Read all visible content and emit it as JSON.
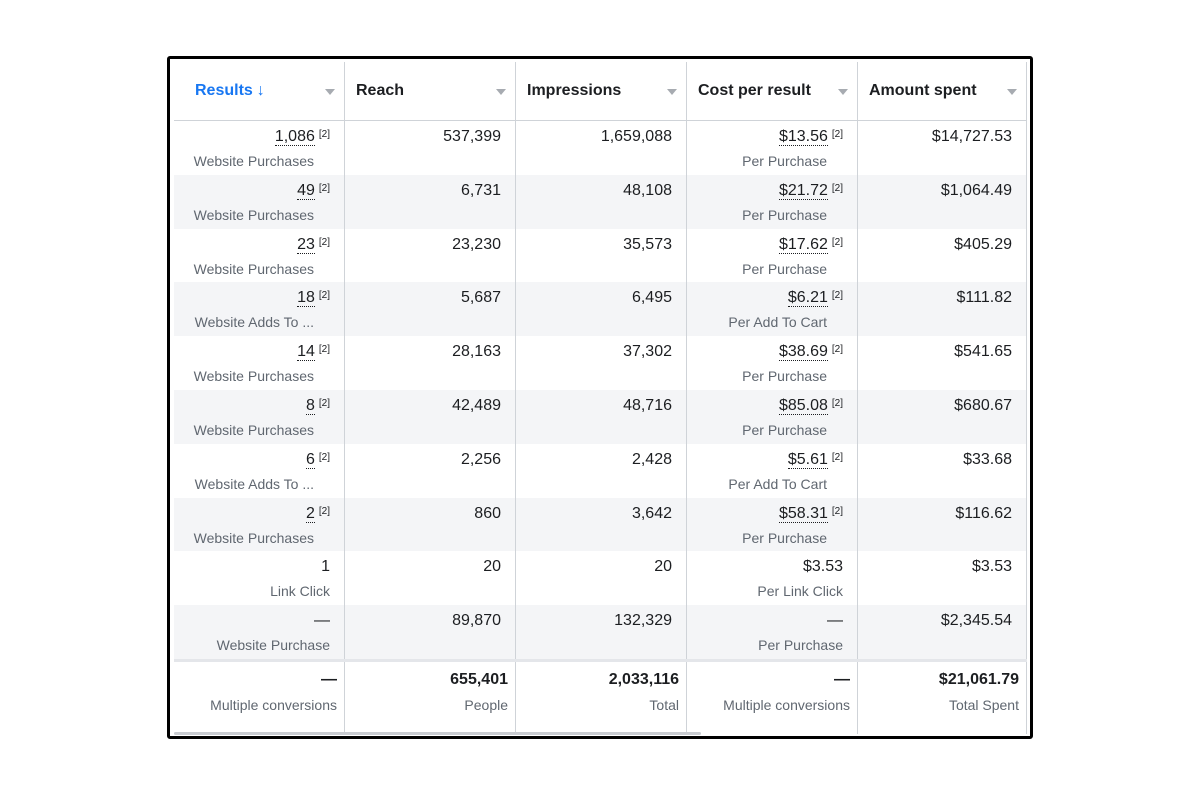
{
  "columns": [
    {
      "label": "Results",
      "sorted": true
    },
    {
      "label": "Reach"
    },
    {
      "label": "Impressions"
    },
    {
      "label": "Cost per result"
    },
    {
      "label": "Amount spent"
    }
  ],
  "sort_arrow": "↓",
  "rows": [
    {
      "results": "1,086",
      "results_sub": "Website Purchases",
      "results_note": "[2]",
      "reach": "537,399",
      "impressions": "1,659,088",
      "cost": "$13.56",
      "cost_note": "[2]",
      "cost_sub": "Per Purchase",
      "spent": "$14,727.53"
    },
    {
      "results": "49",
      "results_sub": "Website Purchases",
      "results_note": "[2]",
      "reach": "6,731",
      "impressions": "48,108",
      "cost": "$21.72",
      "cost_note": "[2]",
      "cost_sub": "Per Purchase",
      "spent": "$1,064.49"
    },
    {
      "results": "23",
      "results_sub": "Website Purchases",
      "results_note": "[2]",
      "reach": "23,230",
      "impressions": "35,573",
      "cost": "$17.62",
      "cost_note": "[2]",
      "cost_sub": "Per Purchase",
      "spent": "$405.29"
    },
    {
      "results": "18",
      "results_sub": "Website Adds To ...",
      "results_note": "[2]",
      "reach": "5,687",
      "impressions": "6,495",
      "cost": "$6.21",
      "cost_note": "[2]",
      "cost_sub": "Per Add To Cart",
      "spent": "$111.82"
    },
    {
      "results": "14",
      "results_sub": "Website Purchases",
      "results_note": "[2]",
      "reach": "28,163",
      "impressions": "37,302",
      "cost": "$38.69",
      "cost_note": "[2]",
      "cost_sub": "Per Purchase",
      "spent": "$541.65"
    },
    {
      "results": "8",
      "results_sub": "Website Purchases",
      "results_note": "[2]",
      "reach": "42,489",
      "impressions": "48,716",
      "cost": "$85.08",
      "cost_note": "[2]",
      "cost_sub": "Per Purchase",
      "spent": "$680.67"
    },
    {
      "results": "6",
      "results_sub": "Website Adds To ...",
      "results_note": "[2]",
      "reach": "2,256",
      "impressions": "2,428",
      "cost": "$5.61",
      "cost_note": "[2]",
      "cost_sub": "Per Add To Cart",
      "spent": "$33.68"
    },
    {
      "results": "2",
      "results_sub": "Website Purchases",
      "results_note": "[2]",
      "reach": "860",
      "impressions": "3,642",
      "cost": "$58.31",
      "cost_note": "[2]",
      "cost_sub": "Per Purchase",
      "spent": "$116.62"
    },
    {
      "results": "1",
      "results_sub": "Link Click",
      "results_note": "",
      "reach": "20",
      "impressions": "20",
      "cost": "$3.53",
      "cost_note": "",
      "cost_sub": "Per Link Click",
      "spent": "$3.53"
    },
    {
      "results": "—",
      "results_sub": "Website Purchase",
      "results_note": "",
      "reach": "89,870",
      "impressions": "132,329",
      "cost": "—",
      "cost_note": "",
      "cost_sub": "Per Purchase",
      "spent": "$2,345.54"
    }
  ],
  "summary": {
    "results": "—",
    "results_sub": "Multiple conversions",
    "reach": "655,401",
    "reach_sub": "People",
    "impressions": "2,033,116",
    "impressions_sub": "Total",
    "cost": "—",
    "cost_sub": "Multiple conversions",
    "spent": "$21,061.79",
    "spent_sub": "Total Spent"
  },
  "colors": {
    "accent": "#1877f2",
    "alt_row": "#f4f5f7",
    "border": "#cfd3d8"
  }
}
